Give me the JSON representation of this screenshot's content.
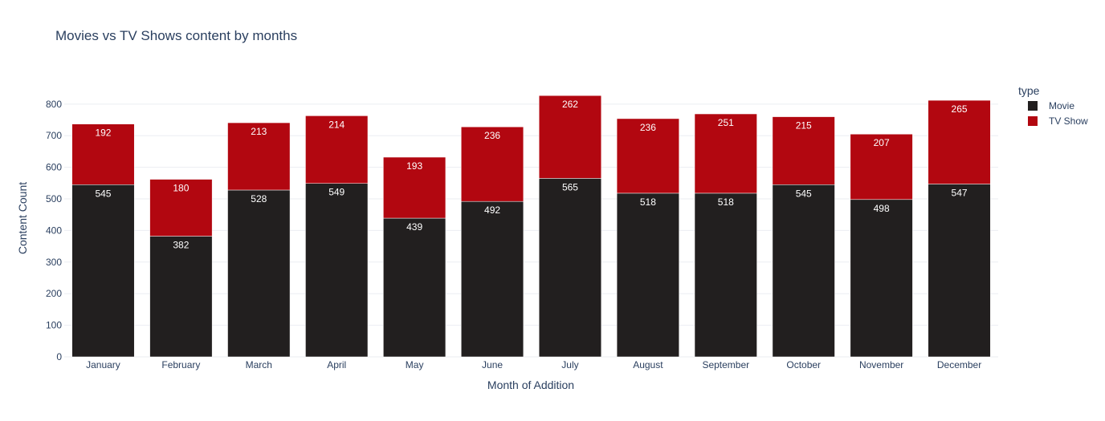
{
  "chart_data": {
    "type": "bar",
    "stacked": true,
    "title": "Movies vs TV Shows content by months",
    "xlabel": "Month of Addition",
    "ylabel": "Content Count",
    "ylim": [
      0,
      830
    ],
    "yticks": [
      0,
      100,
      200,
      300,
      400,
      500,
      600,
      700,
      800
    ],
    "grid": true,
    "legend_title": "type",
    "legend_position": "top-right",
    "categories": [
      "January",
      "February",
      "March",
      "April",
      "May",
      "June",
      "July",
      "August",
      "September",
      "October",
      "November",
      "December"
    ],
    "series": [
      {
        "name": "Movie",
        "color": "#221f1f",
        "values": [
          545,
          382,
          528,
          549,
          439,
          492,
          565,
          518,
          518,
          545,
          498,
          547
        ]
      },
      {
        "name": "TV Show",
        "color": "#b20710",
        "values": [
          192,
          180,
          213,
          214,
          193,
          236,
          262,
          236,
          251,
          215,
          207,
          265
        ]
      }
    ]
  }
}
